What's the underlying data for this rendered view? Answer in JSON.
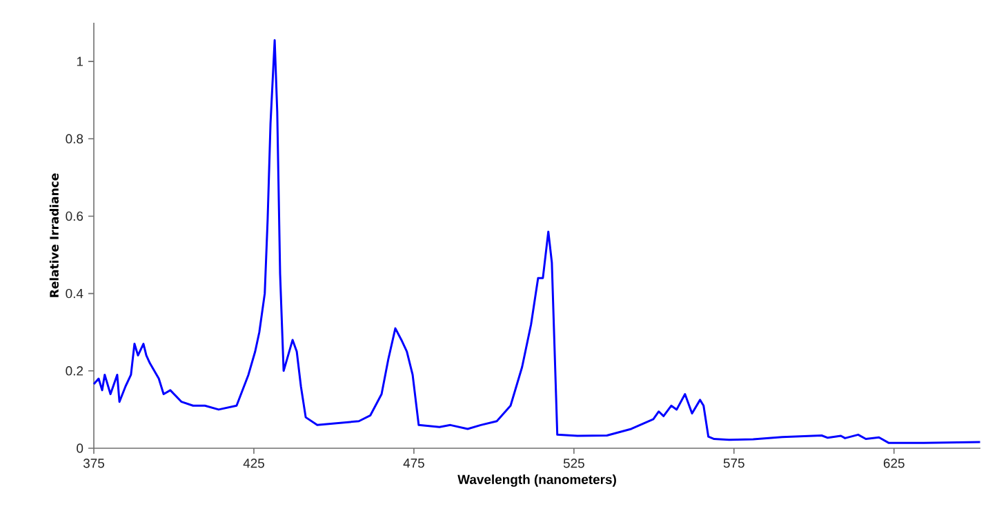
{
  "chart_data": {
    "type": "line",
    "xlabel": "Wavelength (nanometers)",
    "ylabel": "Relative Irradiance",
    "color": "#0000ff",
    "marker": "none",
    "line_style": "solid",
    "xlim": [
      375,
      652
    ],
    "ylim": [
      0,
      1.1
    ],
    "xticks": [
      375,
      425,
      475,
      525,
      575,
      625
    ],
    "yticks": [
      0,
      0.2,
      0.4,
      0.6,
      0.8,
      1
    ],
    "x": [
      375.0,
      376.5,
      377.6,
      378.4,
      380.2,
      382.3,
      383.0,
      384.9,
      386.6,
      387.7,
      388.8,
      390.5,
      391.4,
      392.5,
      395.3,
      396.8,
      398.9,
      402.4,
      406.0,
      409.7,
      414.0,
      419.6,
      423.3,
      425.4,
      426.7,
      428.4,
      429.3,
      430.2,
      431.5,
      432.3,
      433.2,
      434.3,
      437.1,
      438.4,
      439.7,
      441.2,
      444.8,
      451.3,
      457.8,
      461.4,
      464.9,
      467.0,
      469.2,
      471.1,
      472.8,
      474.6,
      476.5,
      483.0,
      486.4,
      491.8,
      495.9,
      500.9,
      505.2,
      508.8,
      511.6,
      513.8,
      515.3,
      517.0,
      518.1,
      519.8,
      526.1,
      535.3,
      542.9,
      549.8,
      551.5,
      553.0,
      555.4,
      557.1,
      559.7,
      561.9,
      564.4,
      565.5,
      567.0,
      568.8,
      573.5,
      581.0,
      590.1,
      602.4,
      604.3,
      608.4,
      609.7,
      613.8,
      616.2,
      620.3,
      623.3,
      634.3,
      651.9
    ],
    "values": [
      0.166,
      0.18,
      0.15,
      0.19,
      0.14,
      0.19,
      0.12,
      0.16,
      0.19,
      0.27,
      0.24,
      0.27,
      0.24,
      0.22,
      0.18,
      0.14,
      0.15,
      0.12,
      0.11,
      0.11,
      0.1,
      0.11,
      0.19,
      0.25,
      0.3,
      0.4,
      0.59,
      0.84,
      1.055,
      0.87,
      0.45,
      0.2,
      0.28,
      0.25,
      0.16,
      0.08,
      0.06,
      0.065,
      0.07,
      0.085,
      0.14,
      0.23,
      0.31,
      0.28,
      0.25,
      0.19,
      0.06,
      0.055,
      0.06,
      0.05,
      0.06,
      0.07,
      0.11,
      0.21,
      0.32,
      0.44,
      0.44,
      0.56,
      0.48,
      0.035,
      0.032,
      0.033,
      0.05,
      0.075,
      0.095,
      0.083,
      0.11,
      0.1,
      0.14,
      0.09,
      0.125,
      0.11,
      0.03,
      0.024,
      0.022,
      0.023,
      0.029,
      0.033,
      0.027,
      0.032,
      0.026,
      0.035,
      0.024,
      0.028,
      0.014,
      0.014,
      0.016
    ]
  }
}
